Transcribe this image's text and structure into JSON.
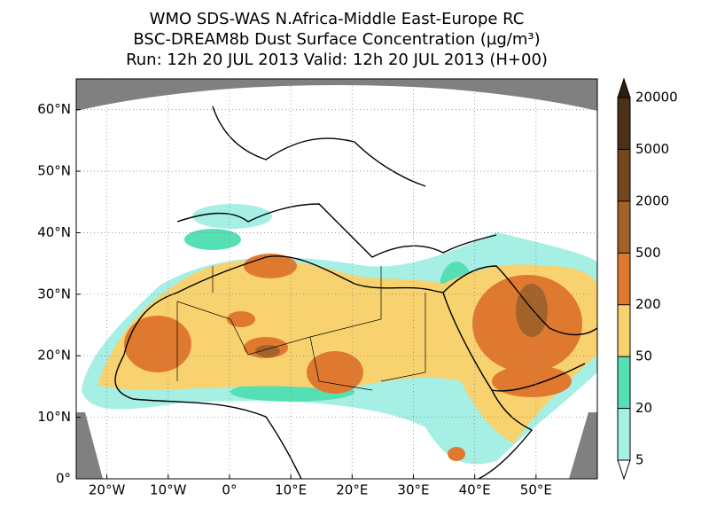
{
  "header": {
    "line1": "WMO SDS-WAS   N.Africa-Middle East-Europe RC",
    "line2": "BSC-DREAM8b    Dust Surface Concentration (µg/m³)",
    "line3": "Run: 12h 20 JUL 2013   Valid: 12h 20 JUL 2013 (H+00)"
  },
  "map": {
    "xlim": [
      -25,
      60
    ],
    "ylim": [
      0,
      65
    ],
    "xticks": [
      {
        "value": -20,
        "label": "20°W"
      },
      {
        "value": -10,
        "label": "10°W"
      },
      {
        "value": 0,
        "label": "0°"
      },
      {
        "value": 10,
        "label": "10°E"
      },
      {
        "value": 20,
        "label": "20°E"
      },
      {
        "value": 30,
        "label": "30°E"
      },
      {
        "value": 40,
        "label": "40°E"
      },
      {
        "value": 50,
        "label": "50°E"
      }
    ],
    "yticks": [
      {
        "value": 0,
        "label": "0°"
      },
      {
        "value": 10,
        "label": "10°N"
      },
      {
        "value": 20,
        "label": "20°N"
      },
      {
        "value": 30,
        "label": "30°N"
      },
      {
        "value": 40,
        "label": "40°N"
      },
      {
        "value": 50,
        "label": "50°N"
      },
      {
        "value": 60,
        "label": "60°N"
      }
    ],
    "grid": true
  },
  "colorbar": {
    "levels": [
      5,
      20,
      50,
      200,
      500,
      2000,
      5000,
      20000
    ],
    "colors": [
      "#a6efe4",
      "#55dfb5",
      "#f8d26e",
      "#e07930",
      "#a3622a",
      "#74461d",
      "#4a3015"
    ],
    "under_color": "#ffffff",
    "over_color": "#2b1f11"
  }
}
